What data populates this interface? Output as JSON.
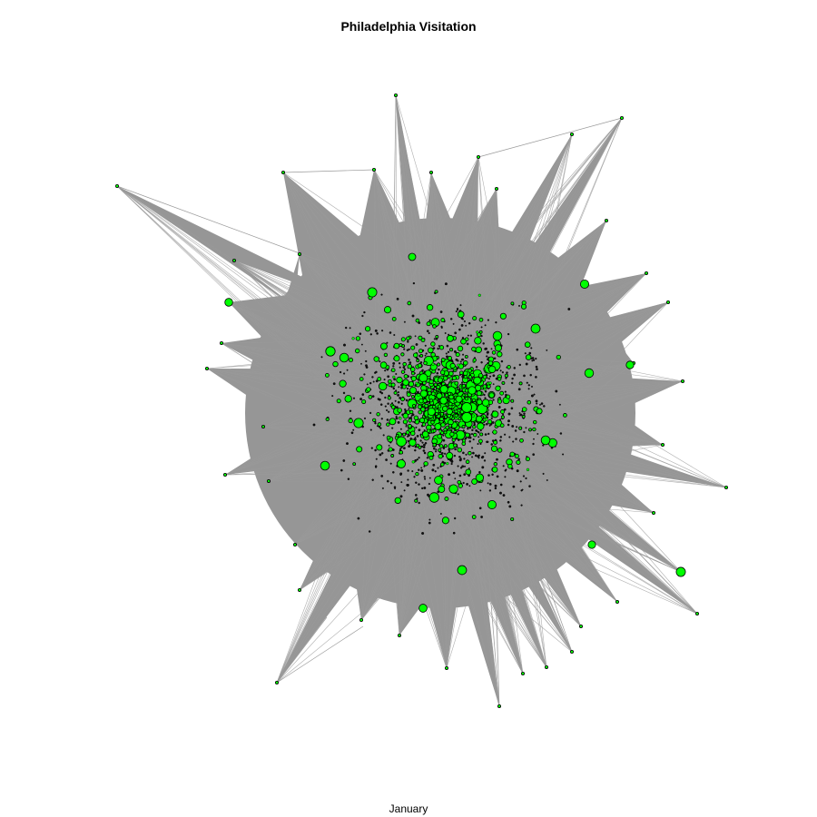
{
  "title": "Philadelphia Visitation",
  "subtitle": "January",
  "colors": {
    "edge": "#9a9a9a",
    "node_fill": "#00ff00",
    "node_stroke": "#000000",
    "background": "#ffffff"
  }
}
